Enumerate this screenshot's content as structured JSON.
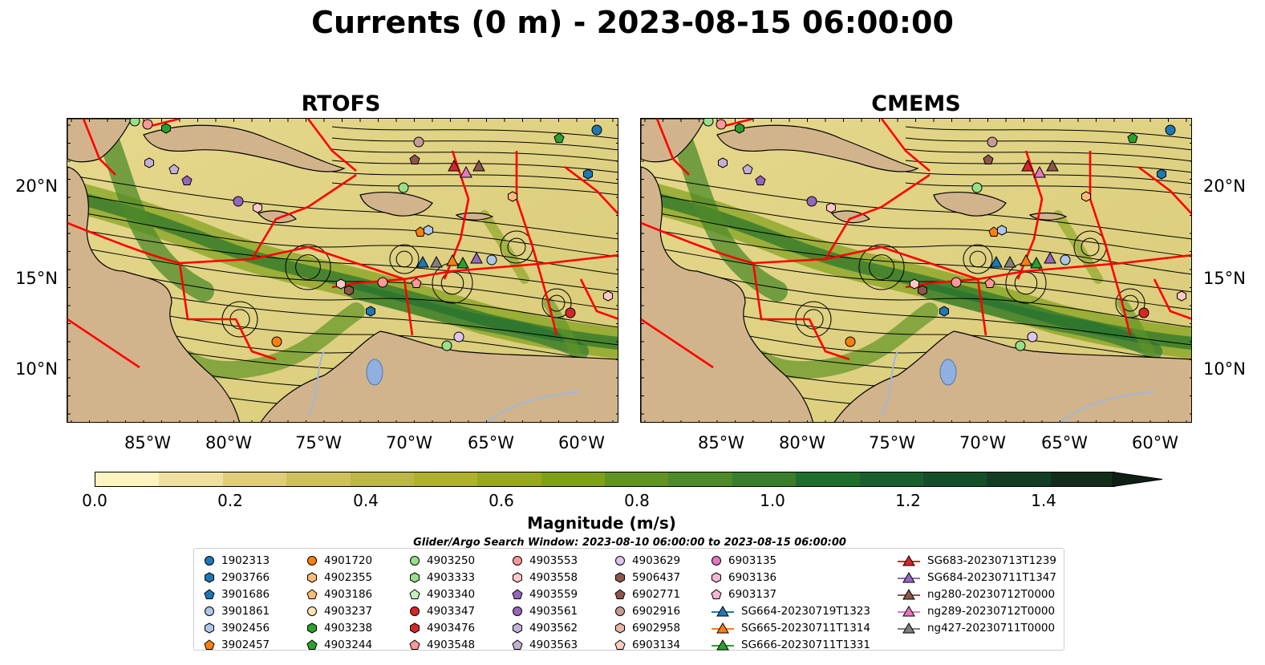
{
  "title": "Currents (0 m) - 2023-08-15 06:00:00",
  "panels": [
    {
      "title": "RTOFS"
    },
    {
      "title": "CMEMS"
    }
  ],
  "axes": {
    "lon_ticks": [
      "85°W",
      "80°W",
      "75°W",
      "70°W",
      "65°W",
      "60°W"
    ],
    "lat_ticks": [
      "20°N",
      "15°N",
      "10°N"
    ]
  },
  "colorbar": {
    "label": "Magnitude (m/s)",
    "ticks": [
      "0.0",
      "0.2",
      "0.4",
      "0.6",
      "0.8",
      "1.0",
      "1.2",
      "1.4"
    ],
    "colors": [
      "#fbf4c0",
      "#efe0a0",
      "#dfcd7c",
      "#cfc05e",
      "#bdb648",
      "#aeb032",
      "#98a820",
      "#7fa01a",
      "#619424",
      "#4e8a2a",
      "#3a7d2c",
      "#1f6e2e",
      "#185f2d",
      "#144f29",
      "#133e23",
      "#122e1b"
    ]
  },
  "legend": {
    "title": "Glider/Argo Search Window: 2023-08-10 06:00:00 to 2023-08-15 06:00:00",
    "columns": [
      [
        {
          "label": "1902313",
          "marker": "circle",
          "color": "#1f77b4"
        },
        {
          "label": "2903766",
          "marker": "hexagon",
          "color": "#1f77b4"
        },
        {
          "label": "3901686",
          "marker": "pentagon",
          "color": "#1f77b4"
        },
        {
          "label": "3901861",
          "marker": "circle",
          "color": "#aec7e8"
        },
        {
          "label": "3902456",
          "marker": "hexagon",
          "color": "#aec7e8"
        },
        {
          "label": "3902457",
          "marker": "pentagon",
          "color": "#ff7f0e"
        }
      ],
      [
        {
          "label": "4901720",
          "marker": "circle",
          "color": "#ff7f0e"
        },
        {
          "label": "4902355",
          "marker": "hexagon",
          "color": "#ffbb78"
        },
        {
          "label": "4903186",
          "marker": "pentagon",
          "color": "#ffbb78"
        },
        {
          "label": "4903237",
          "marker": "circle",
          "color": "#ffe4b5"
        },
        {
          "label": "4903238",
          "marker": "hexagon",
          "color": "#2ca02c"
        },
        {
          "label": "4903244",
          "marker": "pentagon",
          "color": "#2ca02c"
        }
      ],
      [
        {
          "label": "4903250",
          "marker": "circle",
          "color": "#98df8a"
        },
        {
          "label": "4903333",
          "marker": "hexagon",
          "color": "#98df8a"
        },
        {
          "label": "4903340",
          "marker": "pentagon",
          "color": "#c7f0c0"
        },
        {
          "label": "4903347",
          "marker": "circle",
          "color": "#d62728"
        },
        {
          "label": "4903476",
          "marker": "hexagon",
          "color": "#d62728"
        },
        {
          "label": "4903548",
          "marker": "pentagon",
          "color": "#ff9896"
        }
      ],
      [
        {
          "label": "4903553",
          "marker": "circle",
          "color": "#ff9896"
        },
        {
          "label": "4903558",
          "marker": "hexagon",
          "color": "#ffc8c6"
        },
        {
          "label": "4903559",
          "marker": "pentagon",
          "color": "#9467bd"
        },
        {
          "label": "4903561",
          "marker": "circle",
          "color": "#9467bd"
        },
        {
          "label": "4903562",
          "marker": "hexagon",
          "color": "#c5b0d5"
        },
        {
          "label": "4903563",
          "marker": "pentagon",
          "color": "#c5b0d5"
        }
      ],
      [
        {
          "label": "4903629",
          "marker": "circle",
          "color": "#dcc6f0"
        },
        {
          "label": "5906437",
          "marker": "hexagon",
          "color": "#8c564b"
        },
        {
          "label": "6902771",
          "marker": "pentagon",
          "color": "#8c564b"
        },
        {
          "label": "6902916",
          "marker": "circle",
          "color": "#c49c94"
        },
        {
          "label": "6902958",
          "marker": "hexagon",
          "color": "#e8b7a8"
        },
        {
          "label": "6903134",
          "marker": "pentagon",
          "color": "#f7d0c4"
        }
      ],
      [
        {
          "label": "6903135",
          "marker": "circle",
          "color": "#e377c2"
        },
        {
          "label": "6903136",
          "marker": "hexagon",
          "color": "#f7b6d2"
        },
        {
          "label": "6903137",
          "marker": "pentagon",
          "color": "#f7b6d2"
        },
        {
          "label": "SG664-20230719T1323",
          "marker": "triangle-line",
          "color": "#1f77b4"
        },
        {
          "label": "SG665-20230711T1314",
          "marker": "triangle-line",
          "color": "#ff7f0e"
        },
        {
          "label": "SG666-20230711T1331",
          "marker": "triangle-line",
          "color": "#2ca02c"
        }
      ],
      [
        {
          "label": "SG683-20230713T1239",
          "marker": "triangle-line",
          "color": "#d62728"
        },
        {
          "label": "SG684-20230711T1347",
          "marker": "triangle-line",
          "color": "#9467bd"
        },
        {
          "label": "ng280-20230712T0000",
          "marker": "triangle-line",
          "color": "#8c564b"
        },
        {
          "label": "ng289-20230712T0000",
          "marker": "triangle-line",
          "color": "#e377c2"
        },
        {
          "label": "ng427-20230711T0000",
          "marker": "triangle-line",
          "color": "#7f7f7f"
        }
      ]
    ]
  },
  "map_features": {
    "land_color": "#d2b48c",
    "region_boundary_color": "#ff0000",
    "lake_color": "#8fb0e0",
    "river_color": "#a0b8d8"
  }
}
